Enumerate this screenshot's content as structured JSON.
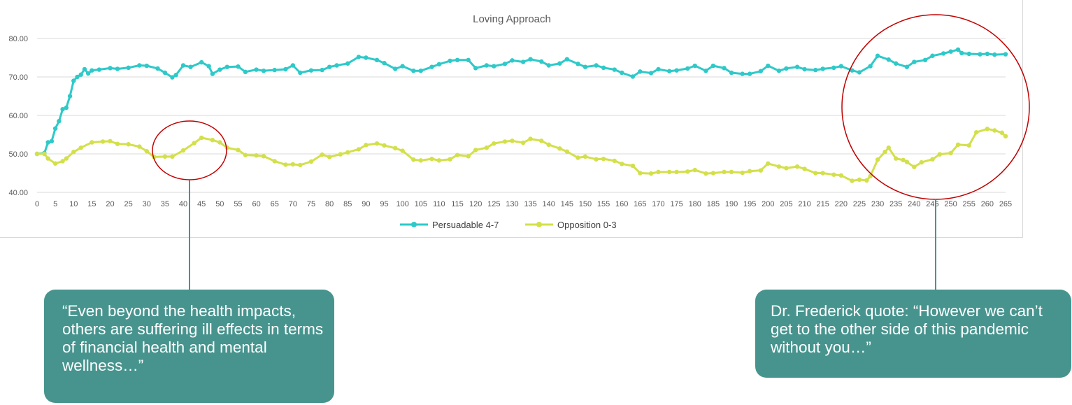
{
  "chart_data": {
    "type": "line",
    "title": "Loving Approach",
    "xlabel": "",
    "ylabel": "",
    "ylim": [
      40,
      80
    ],
    "yticks": [
      "40.00",
      "50.00",
      "60.00",
      "70.00",
      "80.00"
    ],
    "xlim": [
      0,
      265
    ],
    "xticks": [
      0,
      5,
      10,
      15,
      20,
      25,
      30,
      35,
      40,
      45,
      50,
      55,
      60,
      65,
      70,
      75,
      80,
      85,
      90,
      95,
      100,
      105,
      110,
      115,
      120,
      125,
      130,
      135,
      140,
      145,
      150,
      155,
      160,
      165,
      170,
      175,
      180,
      185,
      190,
      195,
      200,
      205,
      210,
      215,
      220,
      225,
      230,
      235,
      240,
      245,
      250,
      255,
      260,
      265
    ],
    "grid": true,
    "legend_position": "bottom",
    "series": [
      {
        "name": "Persuadable 4-7",
        "color": "#2ec9c9",
        "x": [
          0,
          2,
          3,
          4,
          5,
          6,
          7,
          8,
          9,
          10,
          11,
          12,
          13,
          14,
          15,
          17,
          20,
          22,
          25,
          28,
          30,
          33,
          35,
          37,
          38,
          40,
          42,
          45,
          47,
          48,
          50,
          52,
          55,
          57,
          60,
          62,
          65,
          68,
          70,
          72,
          75,
          78,
          80,
          82,
          85,
          88,
          90,
          93,
          95,
          98,
          100,
          103,
          105,
          108,
          110,
          113,
          115,
          118,
          120,
          123,
          125,
          128,
          130,
          133,
          135,
          138,
          140,
          143,
          145,
          148,
          150,
          153,
          155,
          158,
          160,
          163,
          165,
          168,
          170,
          173,
          175,
          178,
          180,
          183,
          185,
          188,
          190,
          193,
          195,
          198,
          200,
          203,
          205,
          208,
          210,
          213,
          215,
          218,
          220,
          223,
          225,
          228,
          230,
          233,
          235,
          238,
          240,
          243,
          245,
          248,
          250,
          252,
          253,
          255,
          258,
          260,
          262,
          265
        ],
        "values": [
          50.0,
          50.2,
          53.0,
          53.3,
          56.6,
          58.5,
          61.6,
          62.0,
          65.0,
          69.0,
          70.0,
          70.6,
          72.0,
          70.9,
          71.7,
          71.9,
          72.3,
          72.1,
          72.4,
          73.0,
          72.9,
          72.2,
          71.1,
          69.9,
          70.5,
          73.0,
          72.6,
          73.8,
          72.8,
          70.8,
          71.9,
          72.6,
          72.7,
          71.3,
          71.9,
          71.6,
          71.8,
          72.0,
          73.0,
          71.1,
          71.7,
          71.8,
          72.6,
          73.0,
          73.5,
          75.2,
          75.0,
          74.4,
          73.6,
          72.1,
          72.8,
          71.6,
          71.6,
          72.6,
          73.3,
          74.2,
          74.4,
          74.4,
          72.3,
          73.0,
          72.8,
          73.4,
          74.3,
          73.9,
          74.6,
          74.0,
          73.0,
          73.5,
          74.6,
          73.4,
          72.6,
          73.0,
          72.4,
          71.9,
          71.1,
          70.1,
          71.4,
          71.0,
          72.0,
          71.5,
          71.7,
          72.2,
          72.9,
          71.6,
          72.9,
          72.3,
          71.1,
          70.8,
          70.8,
          71.5,
          72.9,
          71.6,
          72.2,
          72.6,
          72.0,
          71.8,
          72.1,
          72.4,
          72.8,
          71.7,
          71.2,
          72.8,
          75.5,
          74.5,
          73.5,
          72.6,
          73.9,
          74.4,
          75.5,
          76.1,
          76.6,
          77.1,
          76.2,
          76.0,
          75.9,
          76.0,
          75.8,
          75.9
        ]
      },
      {
        "name": "Opposition 0-3",
        "color": "#d3e04a",
        "x": [
          0,
          2,
          3,
          5,
          7,
          8,
          10,
          12,
          15,
          18,
          20,
          22,
          25,
          28,
          30,
          32,
          35,
          37,
          40,
          43,
          45,
          48,
          50,
          52,
          55,
          57,
          60,
          62,
          65,
          68,
          70,
          72,
          75,
          78,
          80,
          83,
          85,
          88,
          90,
          93,
          95,
          98,
          100,
          103,
          105,
          108,
          110,
          113,
          115,
          118,
          120,
          123,
          125,
          128,
          130,
          133,
          135,
          138,
          140,
          143,
          145,
          148,
          150,
          153,
          155,
          158,
          160,
          163,
          165,
          168,
          170,
          173,
          175,
          178,
          180,
          183,
          185,
          188,
          190,
          193,
          195,
          198,
          200,
          203,
          205,
          208,
          210,
          213,
          215,
          218,
          220,
          223,
          225,
          227,
          228,
          230,
          232,
          233,
          235,
          237,
          238,
          240,
          242,
          245,
          247,
          250,
          252,
          255,
          257,
          260,
          262,
          264,
          265
        ],
        "values": [
          50.0,
          50.0,
          48.8,
          47.5,
          48.1,
          48.8,
          50.5,
          51.6,
          53.0,
          53.2,
          53.3,
          52.6,
          52.5,
          51.9,
          50.7,
          49.2,
          49.3,
          49.3,
          50.9,
          52.8,
          54.2,
          53.6,
          53.0,
          51.6,
          51.0,
          49.7,
          49.6,
          49.4,
          48.1,
          47.2,
          47.3,
          47.1,
          48.0,
          49.8,
          49.2,
          49.9,
          50.4,
          51.2,
          52.3,
          52.7,
          52.2,
          51.5,
          50.8,
          48.5,
          48.3,
          48.7,
          48.3,
          48.6,
          49.7,
          49.4,
          51.0,
          51.6,
          52.7,
          53.2,
          53.4,
          52.9,
          53.9,
          53.4,
          52.4,
          51.4,
          50.6,
          49.0,
          49.3,
          48.6,
          48.7,
          48.2,
          47.4,
          46.9,
          45.0,
          44.9,
          45.3,
          45.3,
          45.3,
          45.4,
          45.8,
          44.9,
          45.0,
          45.3,
          45.3,
          45.1,
          45.5,
          45.7,
          47.5,
          46.7,
          46.3,
          46.7,
          46.1,
          45.0,
          45.0,
          44.6,
          44.4,
          43.0,
          43.3,
          43.1,
          44.2,
          48.5,
          50.5,
          51.6,
          48.8,
          48.4,
          47.9,
          46.6,
          47.8,
          48.6,
          49.9,
          50.2,
          52.4,
          52.2,
          55.6,
          56.5,
          56.1,
          55.5,
          54.6
        ]
      }
    ]
  },
  "callouts": {
    "left": "“Even beyond the health impacts, others are suffering ill effects in terms of financial health and mental wellness…”",
    "right": "Dr. Frederick quote: “However we can’t get to the other side of this pandemic without you…”"
  },
  "annotation_color": "#c00000",
  "connector_color": "#47948e"
}
